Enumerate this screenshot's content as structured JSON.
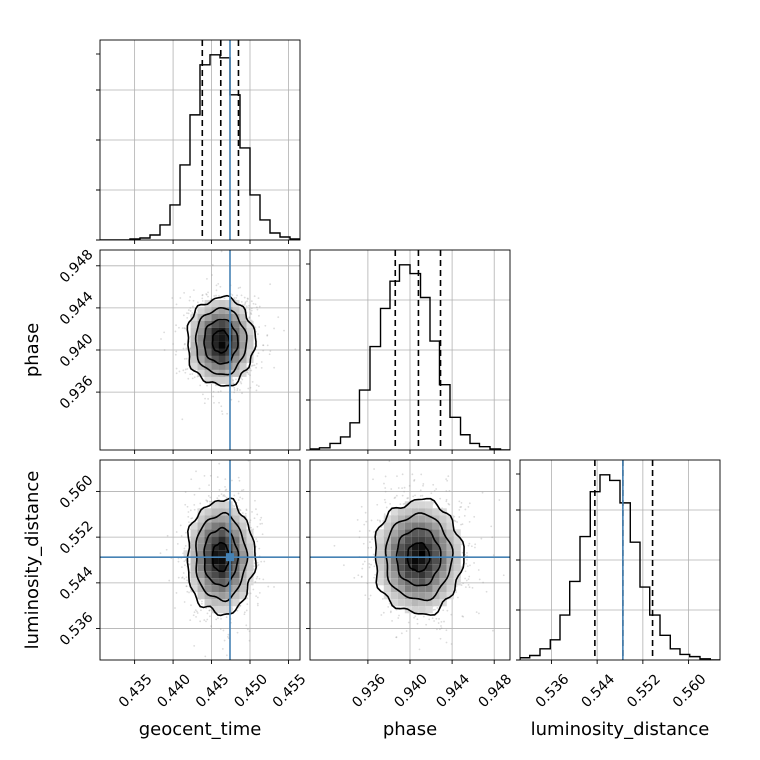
{
  "chart_data": {
    "type": "corner",
    "parameters": [
      "geocent_time",
      "phase",
      "luminosity_distance"
    ],
    "axis_labels": {
      "geocent_time": "geocent_time",
      "phase": "phase",
      "luminosity_distance": "luminosity_distance"
    },
    "ranges": {
      "geocent_time": [
        0.4305,
        0.4565
      ],
      "phase": [
        0.9305,
        0.9495
      ],
      "luminosity_distance": [
        0.5305,
        0.5655
      ]
    },
    "ticks": {
      "geocent_time": [
        "0.435",
        "0.440",
        "0.445",
        "0.450",
        "0.455"
      ],
      "phase": [
        "0.936",
        "0.940",
        "0.944",
        "0.948"
      ],
      "luminosity_distance": [
        "0.536",
        "0.544",
        "0.552",
        "0.560"
      ]
    },
    "truths": {
      "geocent_time": 0.4474,
      "phase": null,
      "luminosity_distance": 0.5485
    },
    "quantiles": {
      "geocent_time": [
        0.4438,
        0.4462,
        0.4485
      ],
      "phase": [
        0.9386,
        0.9408,
        0.9429
      ],
      "luminosity_distance": [
        0.5436,
        0.5485,
        0.5537
      ]
    },
    "posterior_mean": {
      "geocent_time": 0.4462,
      "phase": 0.9408,
      "luminosity_distance": 0.5485
    },
    "posterior_sd": {
      "geocent_time": 0.0022,
      "phase": 0.0021,
      "luminosity_distance": 0.005
    },
    "histograms": {
      "geocent_time": {
        "edges": [
          0.4305,
          0.4318,
          0.4331,
          0.4344,
          0.4357,
          0.437,
          0.4383,
          0.4396,
          0.4409,
          0.4422,
          0.4435,
          0.4448,
          0.4461,
          0.4474,
          0.4487,
          0.45,
          0.4513,
          0.4526,
          0.4539,
          0.4552,
          0.4565
        ],
        "counts": [
          0,
          0,
          0,
          1,
          2,
          5,
          15,
          35,
          75,
          125,
          175,
          185,
          182,
          145,
          92,
          45,
          20,
          7,
          3,
          1
        ]
      },
      "phase": {
        "edges": [
          0.9305,
          0.9314,
          0.9324,
          0.9334,
          0.9343,
          0.9352,
          0.9362,
          0.9372,
          0.9381,
          0.939,
          0.94,
          0.941,
          0.9419,
          0.9428,
          0.9438,
          0.9448,
          0.9457,
          0.9466,
          0.9476,
          0.9486,
          0.9495
        ],
        "counts": [
          1,
          2,
          6,
          12,
          25,
          55,
          95,
          130,
          155,
          170,
          162,
          140,
          100,
          60,
          30,
          14,
          6,
          3,
          1,
          0
        ]
      },
      "luminosity_distance": {
        "edges": [
          0.5305,
          0.5322,
          0.534,
          0.5358,
          0.5375,
          0.5392,
          0.541,
          0.5428,
          0.5445,
          0.5462,
          0.548,
          0.5498,
          0.5515,
          0.5532,
          0.555,
          0.5568,
          0.5585,
          0.5602,
          0.562,
          0.5638,
          0.5655
        ],
        "counts": [
          2,
          4,
          10,
          18,
          40,
          70,
          110,
          150,
          165,
          160,
          140,
          105,
          65,
          40,
          22,
          10,
          5,
          3,
          1,
          0
        ]
      }
    },
    "grid": true
  }
}
